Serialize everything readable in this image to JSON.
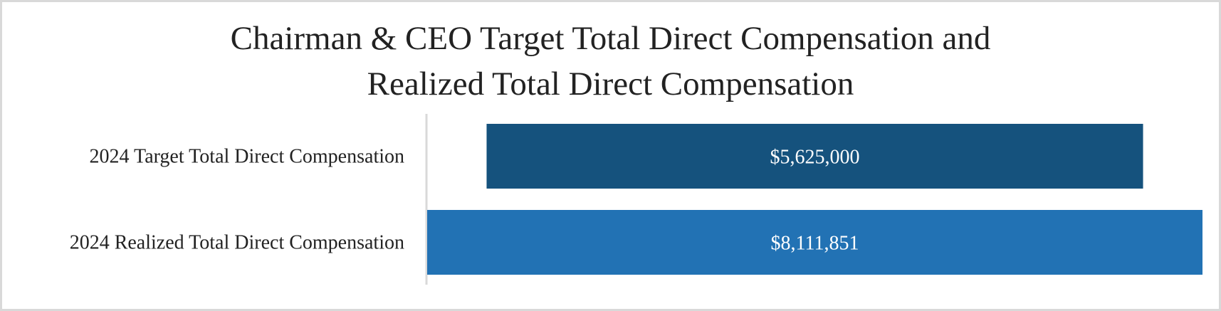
{
  "chart_data": {
    "type": "bar",
    "orientation": "horizontal",
    "style": "funnel (centered bars)",
    "title": [
      "Chairman & CEO Target Total Direct Compensation and",
      "Realized Total Direct Compensation"
    ],
    "categories": [
      "2024 Target Total Direct Compensation",
      "2024 Realized Total Direct Compensation"
    ],
    "values": [
      5625000,
      8111851
    ],
    "data_labels": [
      "$5,625,000",
      "$8,111,851"
    ],
    "colors": [
      "#15527d",
      "#2272b4"
    ],
    "grid": false,
    "legend": "none"
  }
}
